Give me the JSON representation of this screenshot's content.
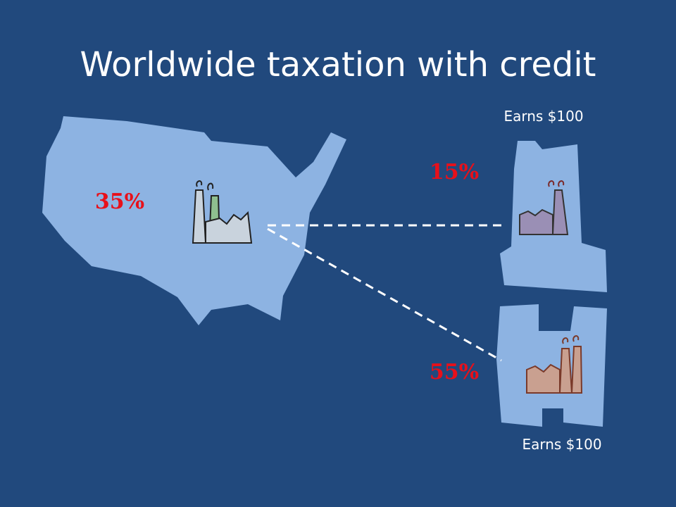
{
  "title": "Worldwide taxation with credit",
  "home_country": {
    "rate": "35%"
  },
  "foreign_countries": [
    {
      "rate": "15%",
      "earnings": "Earns $100"
    },
    {
      "rate": "55%",
      "earnings": "Earns $100"
    }
  ]
}
